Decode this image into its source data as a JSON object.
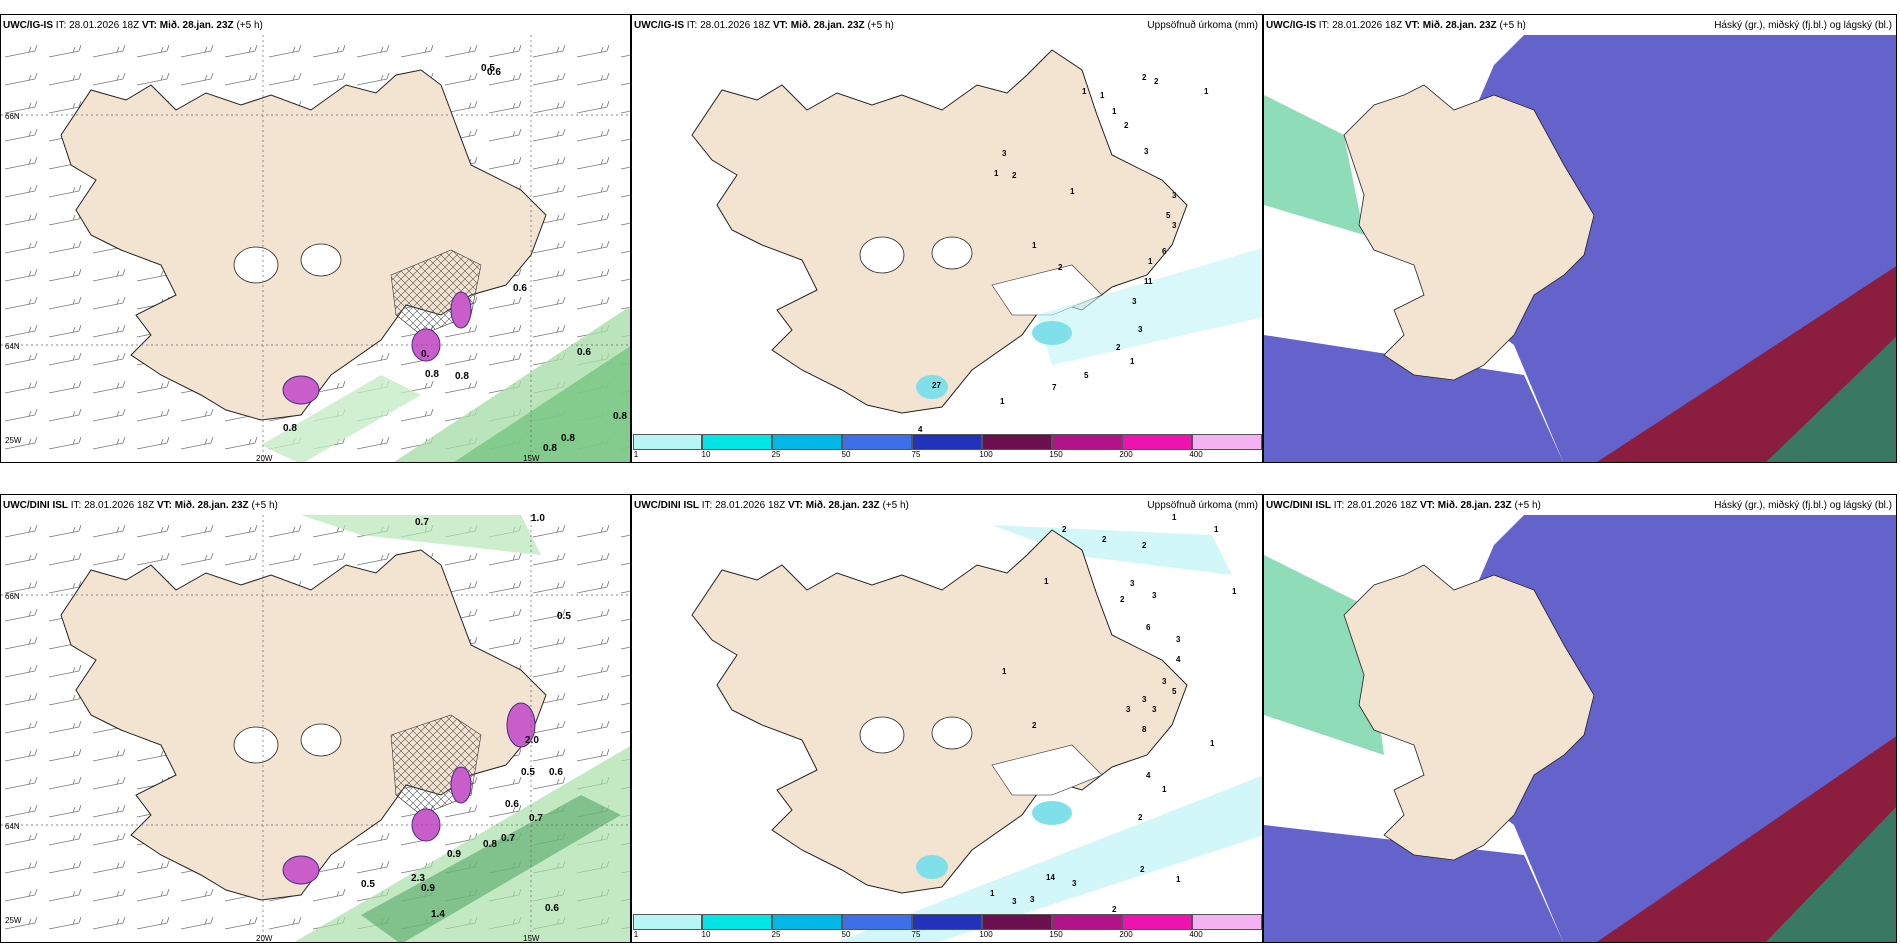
{
  "colors": {
    "land": "#f3e3d1",
    "white_area": "#ffffff",
    "green_precip": "#7fd18a",
    "magenta": "#d45ad6",
    "cloud_low": "#5c5ac8",
    "cloud_mid": "#2ab5b0",
    "cloud_high": "#8b1e3f"
  },
  "panels": {
    "top_left": {
      "model": "UWC/IG-IS",
      "it": "IT: 28.01.2026 18Z",
      "vt_label": "VT:",
      "vt": "Mið. 28.jan. 23Z",
      "lead": "(+5 h)",
      "right_title": ""
    },
    "top_mid": {
      "model": "UWC/IG-IS",
      "it": "IT: 28.01.2026 18Z",
      "vt_label": "VT:",
      "vt": "Mið. 28.jan. 23Z",
      "lead": "(+5 h)",
      "right_title": "Uppsöfnuð úrkoma (mm)"
    },
    "top_right": {
      "model": "UWC/IG-IS",
      "it": "IT: 28.01.2026 18Z",
      "vt_label": "VT:",
      "vt": "Mið. 28.jan. 23Z",
      "lead": "(+5 h)",
      "right_title": "Háský (gr.), miðský (fj.bl.) og lágský (bl.)"
    },
    "bot_left": {
      "model": "UWC/DINI ISL",
      "it": "IT: 28.01.2026 18Z",
      "vt_label": "VT:",
      "vt": "Mið. 28.jan. 23Z",
      "lead": "(+5 h)",
      "right_title": ""
    },
    "bot_mid": {
      "model": "UWC/DINI ISL",
      "it": "IT: 28.01.2026 18Z",
      "vt_label": "VT:",
      "vt": "Mið. 28.jan. 23Z",
      "lead": "(+5 h)",
      "right_title": "Uppsöfnuð úrkoma (mm)"
    },
    "bot_right": {
      "model": "UWC/DINI ISL",
      "it": "IT: 28.01.2026 18Z",
      "vt_label": "VT:",
      "vt": "Mið. 28.jan. 23Z",
      "lead": "(+5 h)",
      "right_title": "Háský (gr.), miðský (fj.bl.) og lágský (bl.)"
    }
  },
  "grid_labels": {
    "lat66": "66N",
    "lat64": "64N",
    "lon20": "20W",
    "lon15": "15W",
    "lon25": "25W"
  },
  "colorbar": {
    "labels": [
      "1",
      "10",
      "25",
      "50",
      "75",
      "100",
      "150",
      "200",
      "400"
    ],
    "colors": [
      "#b8f5f5",
      "#00e6e6",
      "#00b7e8",
      "#3f6fe8",
      "#2233bb",
      "#6b0f4f",
      "#b3138a",
      "#ee12b0",
      "#f5b2f2"
    ]
  },
  "values": {
    "top_left": [
      "0.8",
      "0.8",
      "0.8",
      "0.6",
      "0.8",
      "0.8",
      "0.8",
      "0.6",
      "0.",
      "0.5",
      "0.6"
    ],
    "top_mid": [
      "2",
      "2",
      "1",
      "1",
      "1",
      "1",
      "2",
      "3",
      "3",
      "1",
      "2",
      "1",
      "3",
      "5",
      "3",
      "1",
      "6",
      "11",
      "1",
      "2",
      "3",
      "3",
      "2",
      "1",
      "5",
      "7",
      "1",
      "27",
      "4"
    ],
    "bot_left": [
      "0.7",
      "1.0",
      "0.5",
      "0.6",
      "0.6",
      "0.5",
      "0.7",
      "0.7",
      "0.9",
      "0.8",
      "0.5",
      "0.9",
      "0.6",
      "1.4",
      "2.0",
      "2.3"
    ],
    "bot_mid": [
      "2",
      "2",
      "2",
      "1",
      "1",
      "1",
      "3",
      "3",
      "2",
      "6",
      "1",
      "1",
      "2",
      "3",
      "4",
      "3",
      "5",
      "3",
      "3",
      "3",
      "8",
      "1",
      "4",
      "2",
      "1",
      "14",
      "3",
      "3",
      "3",
      "2",
      "1",
      "1",
      "2"
    ]
  }
}
